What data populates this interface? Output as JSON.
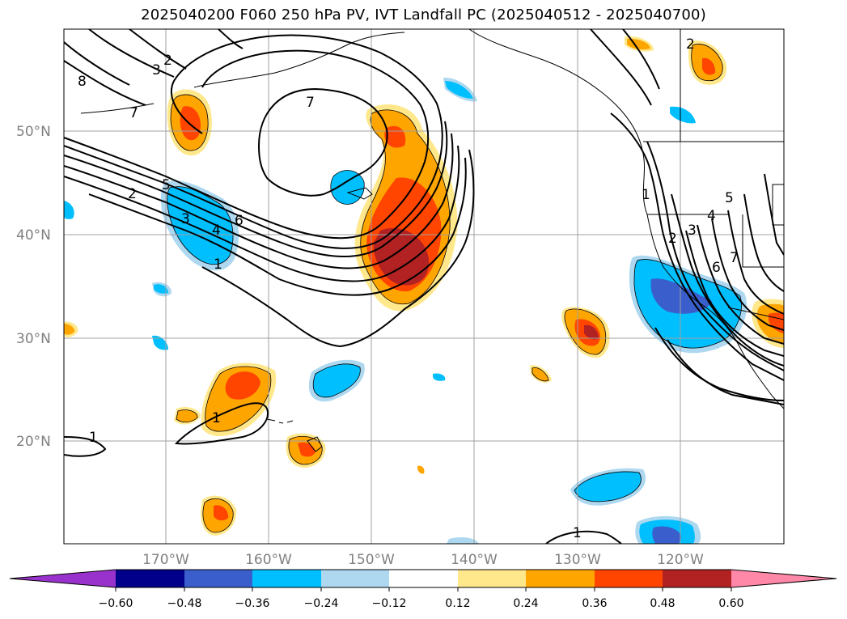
{
  "title": "2025040200 F060 250 hPa PV, IVT Landfall PC (2025040512 - 2025040700)",
  "map": {
    "lat_labels": [
      "50°N",
      "40°N",
      "30°N",
      "20°N"
    ],
    "lon_labels": [
      "170°W",
      "160°W",
      "150°W",
      "140°W",
      "130°W",
      "120°W"
    ],
    "contour_labels": [
      "8",
      "3",
      "2",
      "7",
      "7",
      "2",
      "5",
      "3",
      "4",
      "6",
      "1",
      "1",
      "1",
      "1",
      "2",
      "3",
      "4",
      "5",
      "6",
      "7",
      "2",
      "1"
    ]
  },
  "colorbar": {
    "ticks": [
      "−0.60",
      "−0.48",
      "−0.36",
      "−0.24",
      "−0.12",
      "0.12",
      "0.24",
      "0.36",
      "0.48",
      "0.60"
    ],
    "colors": [
      "#9932cc",
      "#00008b",
      "#3a5fcd",
      "#00bfff",
      "#add8f0",
      "#ffffff",
      "#ffe88c",
      "#ffa500",
      "#ff4500",
      "#b22222",
      "#ff88a8"
    ]
  },
  "colors": {
    "light_orange": "#ffe88c",
    "orange": "#ffa500",
    "red_orange": "#ff4500",
    "dark_red": "#b22222",
    "light_blue": "#add8f0",
    "blue": "#00bfff",
    "royal_blue": "#3a5fcd"
  }
}
